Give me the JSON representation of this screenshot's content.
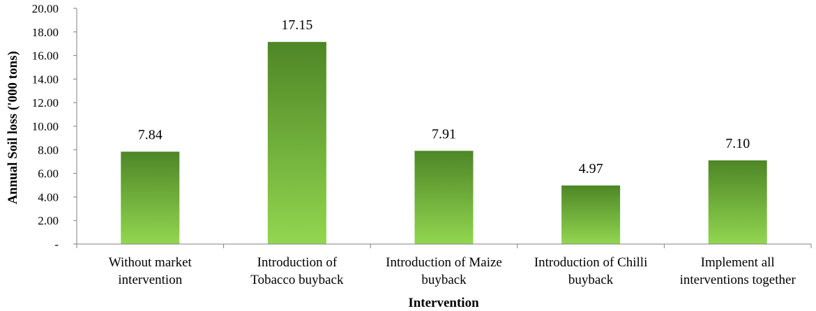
{
  "chart_data": {
    "type": "bar",
    "title": "",
    "xlabel": "Intervention",
    "ylabel": "Annual Soil loss ('000 tons)",
    "categories": [
      [
        "Without market",
        "intervention"
      ],
      [
        "Introduction of",
        "Tobacco buyback"
      ],
      [
        "Introduction of Maize",
        "buyback"
      ],
      [
        "Introduction of Chilli",
        "buyback"
      ],
      [
        "Implement all",
        "interventions together"
      ]
    ],
    "values": [
      7.84,
      17.15,
      7.91,
      4.97,
      7.1
    ],
    "value_labels": [
      "7.84",
      "17.15",
      "7.91",
      "4.97",
      "7.10"
    ],
    "ylim": [
      0,
      20
    ],
    "yticks": [
      0,
      2,
      4,
      6,
      8,
      10,
      12,
      14,
      16,
      18,
      20
    ],
    "ytick_labels": [
      "-",
      "2.00",
      "4.00",
      "6.00",
      "8.00",
      "10.00",
      "12.00",
      "14.00",
      "16.00",
      "18.00",
      "20.00"
    ],
    "grid": false,
    "legend": "none",
    "colors": {
      "bar_top": "#4E8626",
      "bar_bottom": "#92D650",
      "axis": "#808080"
    }
  }
}
